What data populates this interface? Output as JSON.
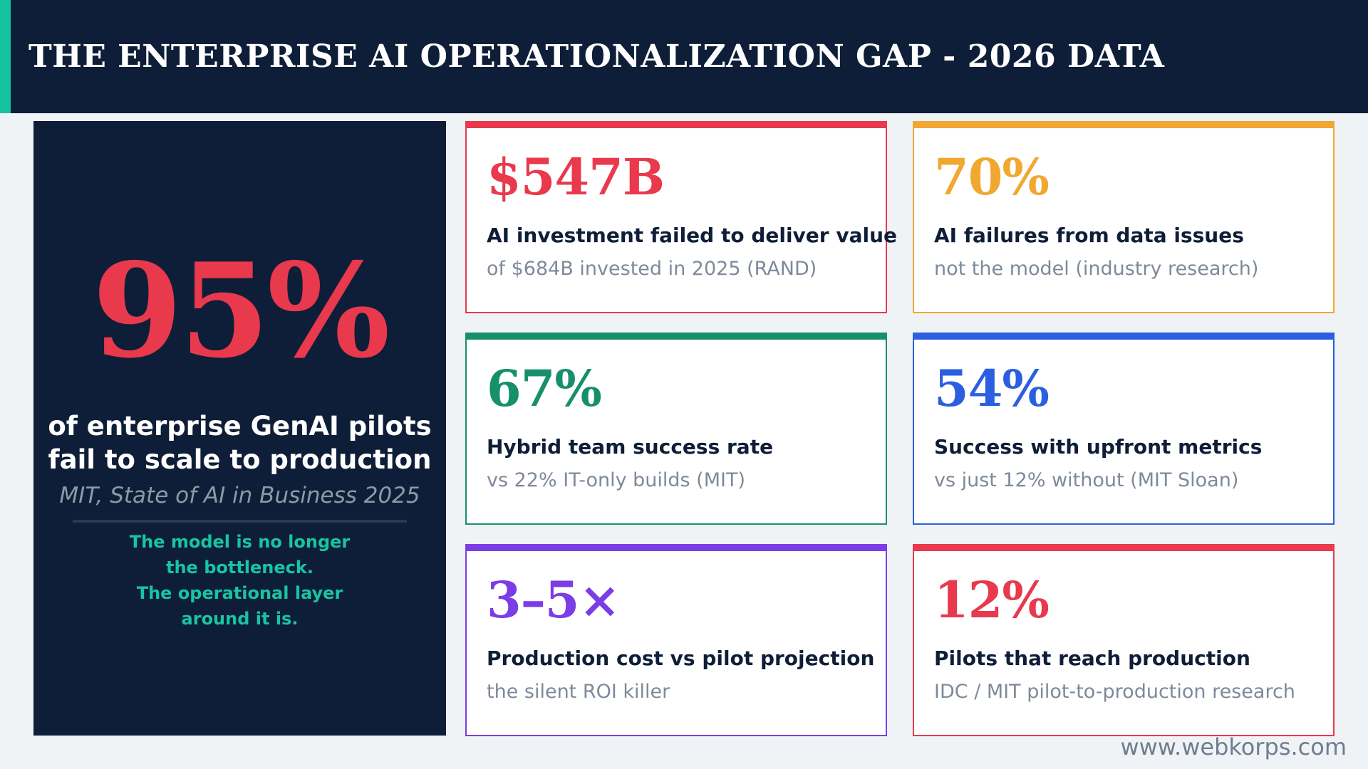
{
  "header": {
    "title": "THE ENTERPRISE AI OPERATIONALIZATION GAP - 2026 DATA"
  },
  "hero": {
    "value": "95%",
    "description": "of enterprise GenAI pilots fail to scale to production",
    "source": "MIT, State of AI in Business 2025",
    "note_lines": [
      "The model is no longer",
      "the bottleneck.",
      "The operational layer",
      "around it is."
    ]
  },
  "cards": [
    {
      "value": "$547B",
      "label": "AI investment failed to deliver value",
      "sub": "of $684B invested in 2025 (RAND)",
      "color": "#e8394d"
    },
    {
      "value": "70%",
      "label": "AI failures from data issues",
      "sub": "not the model (industry research)",
      "color": "#f0a830"
    },
    {
      "value": "67%",
      "label": "Hybrid team success rate",
      "sub": "vs 22% IT-only builds (MIT)",
      "color": "#16906a"
    },
    {
      "value": "54%",
      "label": "Success with upfront metrics",
      "sub": "vs just 12% without (MIT Sloan)",
      "color": "#2b5fe0"
    },
    {
      "value": "3–5×",
      "label": "Production cost vs pilot projection",
      "sub": "the silent ROI killer",
      "color": "#7a3de6"
    },
    {
      "value": "12%",
      "label": "Pilots that reach production",
      "sub": "IDC / MIT pilot-to-production research",
      "color": "#e8394d"
    }
  ],
  "footer": {
    "url": "www.webkorps.com"
  }
}
